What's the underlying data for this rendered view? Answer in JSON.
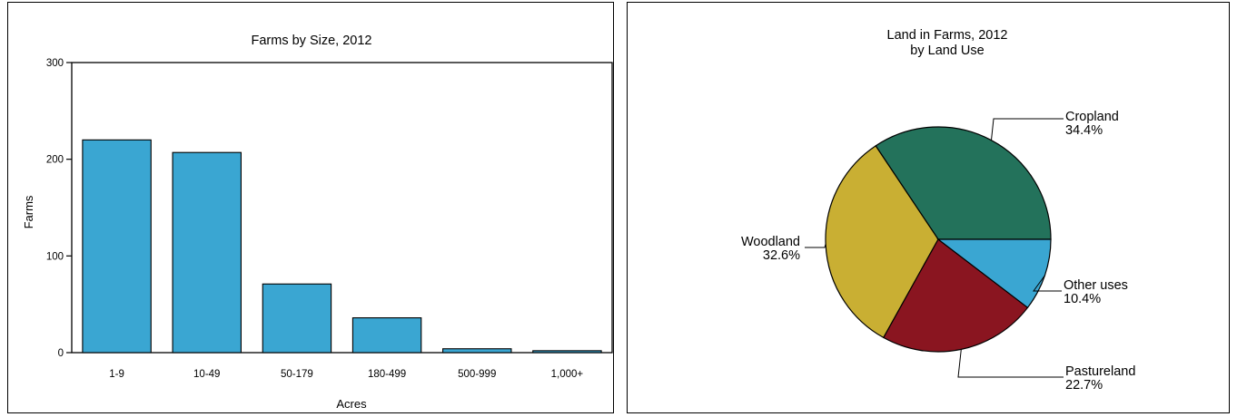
{
  "chart_data": [
    {
      "type": "bar",
      "title": "Farms by Size, 2012",
      "xlabel": "Acres",
      "ylabel": "Farms",
      "categories": [
        "1-9",
        "10-49",
        "50-179",
        "180-499",
        "500-999",
        "1,000+"
      ],
      "values": [
        220,
        207,
        71,
        36,
        4,
        2
      ],
      "ylim": [
        0,
        300
      ],
      "yticks": [
        0,
        100,
        200,
        300
      ],
      "bar_color": "#3aa6d2",
      "grid": false
    },
    {
      "type": "pie",
      "title": "Land in Farms, 2012",
      "subtitle": "by Land Use",
      "slices": [
        {
          "label": "Cropland",
          "value": 34.4,
          "value_label": "34.4%",
          "color": "#23725b"
        },
        {
          "label": "Woodland",
          "value": 32.6,
          "value_label": "32.6%",
          "color": "#c9af33"
        },
        {
          "label": "Pastureland",
          "value": 22.7,
          "value_label": "22.7%",
          "color": "#8a1520"
        },
        {
          "label": "Other uses",
          "value": 10.4,
          "value_label": "10.4%",
          "color": "#3aa6d2"
        }
      ]
    }
  ]
}
